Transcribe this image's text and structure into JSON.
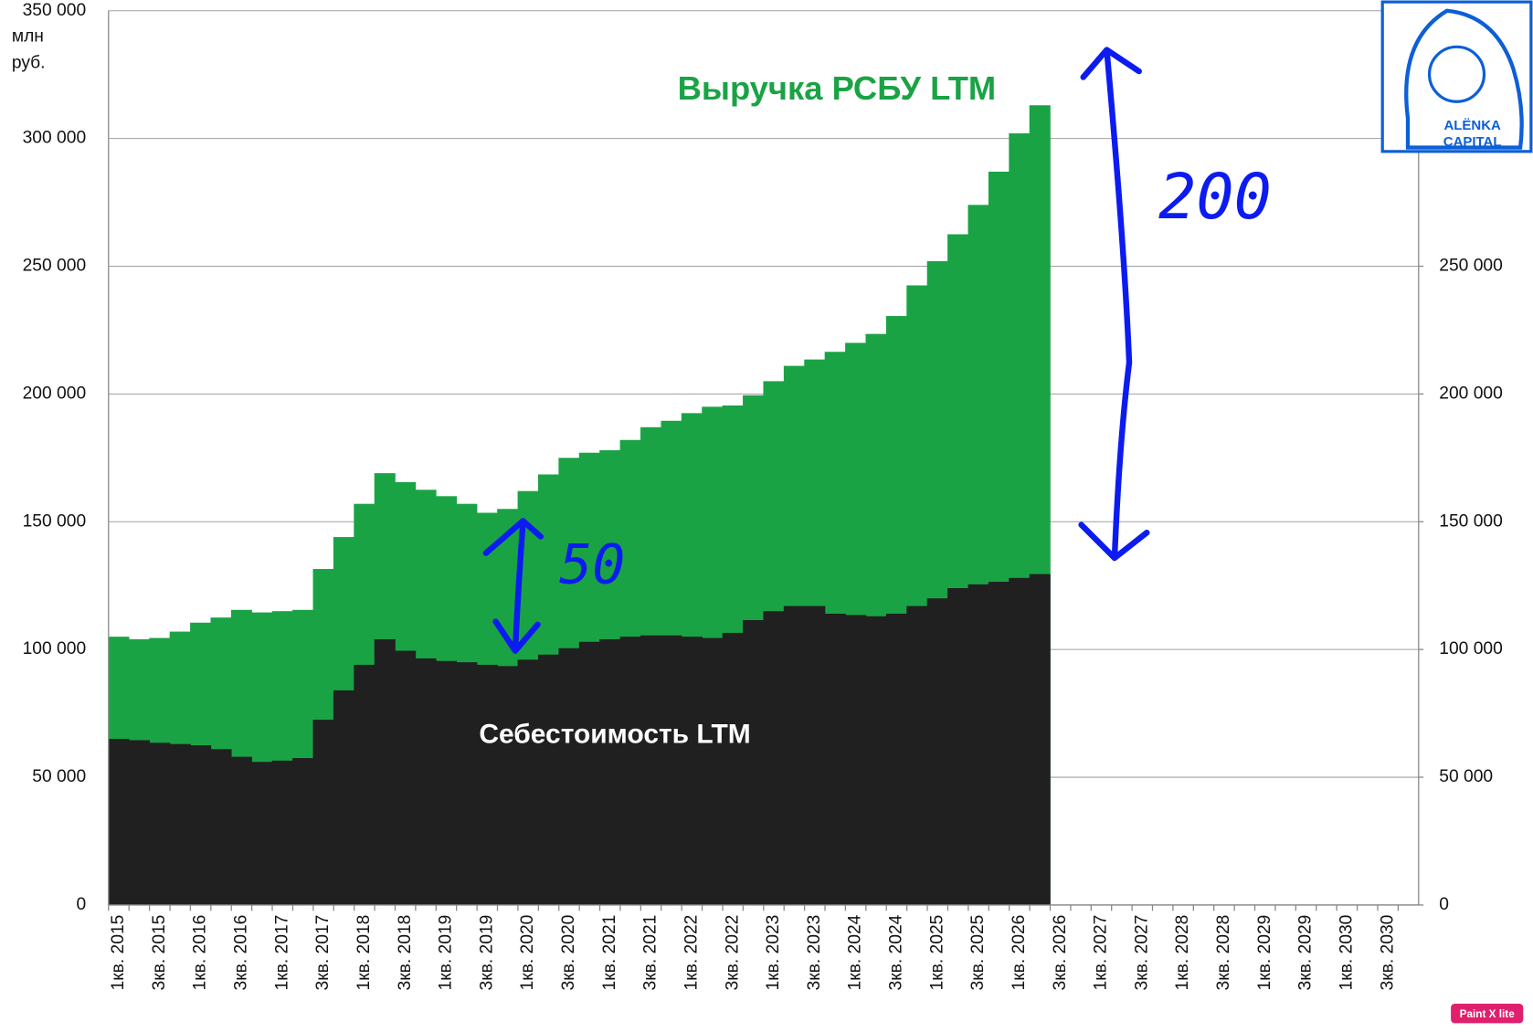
{
  "chart_data": {
    "type": "step-area",
    "y_unit_labels": [
      "млн",
      "руб."
    ],
    "annotations": {
      "revenue": "Выручка РСБУ LTM",
      "cost": "Себестоимость LTM",
      "gap_small": "50",
      "gap_large": "200"
    },
    "logo": [
      "ALЁNKA",
      "CAPITAL"
    ],
    "watermark": "Paint X lite",
    "categories": [
      "1кв. 2015",
      null,
      "3кв. 2015",
      null,
      "1кв. 2016",
      null,
      "3кв. 2016",
      null,
      "1кв. 2017",
      null,
      "3кв. 2017",
      null,
      "1кв. 2018",
      null,
      "3кв. 2018",
      null,
      "1кв. 2019",
      null,
      "3кв. 2019",
      null,
      "1кв. 2020",
      null,
      "3кв. 2020",
      null,
      "1кв. 2021",
      null,
      "3кв. 2021",
      null,
      "1кв. 2022",
      null,
      "3кв. 2022",
      null,
      "1кв. 2023",
      null,
      "3кв. 2023",
      null,
      "1кв. 2024",
      null,
      "3кв. 2024",
      null,
      "1кв. 2025",
      null,
      "3кв. 2025",
      null,
      "1кв. 2026",
      null,
      "3кв. 2026",
      null,
      "1кв. 2027",
      null,
      "3кв. 2027",
      null,
      "1кв. 2028",
      null,
      "3кв. 2028",
      null,
      "1кв. 2029",
      null,
      "3кв. 2029",
      null,
      "1кв. 2030",
      null,
      "3кв. 2030",
      null
    ],
    "series": [
      {
        "name": "Выручка РСБУ LTM",
        "color": "#1aa345",
        "values": [
          105000,
          104000,
          104500,
          107000,
          110500,
          112500,
          115500,
          114500,
          115000,
          115500,
          131500,
          144000,
          157000,
          169000,
          165500,
          162500,
          160000,
          157000,
          153500,
          155000,
          162000,
          168500,
          175000,
          177000,
          178000,
          182000,
          187000,
          189500,
          192500,
          195000,
          195500,
          199500,
          205000,
          211000,
          213500,
          216500,
          220000,
          223500,
          230500,
          242500,
          252000,
          262500,
          274000,
          287000,
          302000,
          313000,
          null,
          null,
          null,
          null,
          null,
          null,
          null,
          null,
          null,
          null,
          null,
          null,
          null,
          null,
          null,
          null,
          null,
          null
        ]
      },
      {
        "name": "Себестоимость LTM",
        "color": "#202020",
        "values": [
          65000,
          64500,
          63500,
          63000,
          62500,
          61000,
          58000,
          56000,
          56500,
          57500,
          72500,
          84000,
          94000,
          104000,
          99500,
          96500,
          95500,
          95000,
          94000,
          93500,
          96000,
          98000,
          100500,
          103000,
          104000,
          105000,
          105500,
          105500,
          105000,
          104500,
          106500,
          111500,
          115000,
          117000,
          117000,
          114000,
          113500,
          113000,
          114000,
          117000,
          120000,
          124000,
          125500,
          126500,
          128000,
          129500,
          null,
          null,
          null,
          null,
          null,
          null,
          null,
          null,
          null,
          null,
          null,
          null,
          null,
          null,
          null,
          null,
          null,
          null
        ]
      }
    ],
    "ylim": [
      0,
      350000
    ],
    "yticks": [
      0,
      {
        "value": 50000,
        "label": "50 000"
      },
      {
        "value": 100000,
        "label": "100 000"
      },
      {
        "value": 150000,
        "label": "150 000"
      },
      {
        "value": 200000,
        "label": "200 000"
      },
      {
        "value": 250000,
        "label": "250 000"
      },
      {
        "value": 300000,
        "label": "300 000"
      },
      {
        "value": 350000,
        "label": "350 000"
      }
    ],
    "y2lim": [
      0,
      350000
    ],
    "y2ticks": [
      0,
      {
        "value": 50000,
        "label": "50 000"
      },
      {
        "value": 100000,
        "label": "100 000"
      },
      {
        "value": 150000,
        "label": "150 000"
      },
      {
        "value": 200000,
        "label": "200 000"
      },
      {
        "value": 250000,
        "label": "250 000"
      }
    ],
    "grid": true
  }
}
